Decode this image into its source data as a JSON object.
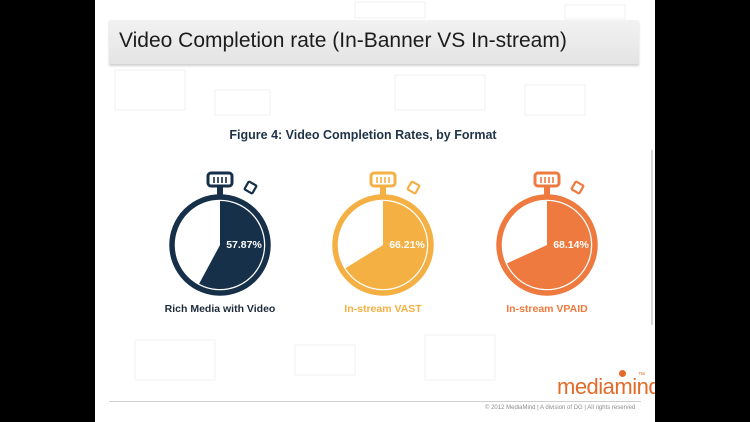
{
  "slide": {
    "title": "Video Completion rate (In-Banner VS In-stream)",
    "brand": "mediamind",
    "brand_tm": "™",
    "copyright": "© 2012 MediaMind | A division of DG | All rights reserved"
  },
  "chart_data": {
    "type": "pie",
    "title": "Figure 4: Video Completion Rates, by Format",
    "unit": "%",
    "categories": [
      "Rich Media with Video",
      "In-stream VAST",
      "In-stream VPAID"
    ],
    "values": [
      57.87,
      66.21,
      68.14
    ],
    "value_labels": [
      "57.87%",
      "66.21%",
      "68.14%"
    ],
    "colors": [
      "#163049",
      "#f5b043",
      "#ee7a3f"
    ],
    "label_colors": [
      "#1c2a38",
      "#f5b043",
      "#ee7a3f"
    ],
    "style": "stopwatch"
  }
}
